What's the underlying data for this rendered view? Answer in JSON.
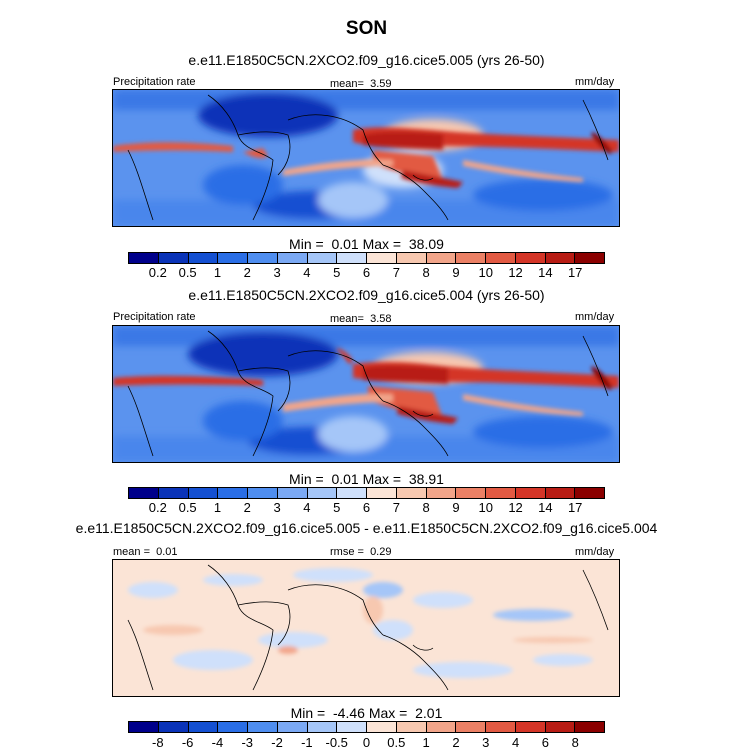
{
  "main_title": "SON",
  "colors": {
    "precip_scale": [
      "#00008b",
      "#0a33b8",
      "#1450d2",
      "#2a6ee6",
      "#4f8ef0",
      "#7ba9f4",
      "#a5c6f8",
      "#cfe0fb",
      "#fbe4d6",
      "#f7c8b0",
      "#f2a58a",
      "#eb8065",
      "#e25a43",
      "#d43527",
      "#b81c14",
      "#8b0000"
    ],
    "diff_scale": [
      "#00008b",
      "#0a33b8",
      "#1450d2",
      "#2a6ee6",
      "#4f8ef0",
      "#7ba9f4",
      "#a5c6f8",
      "#cfe0fb",
      "#fbe4d6",
      "#f7c8b0",
      "#f2a58a",
      "#eb8065",
      "#e25a43",
      "#d43527",
      "#b81c14",
      "#8b0000"
    ],
    "land_line": "#000000"
  },
  "chart_data": [
    {
      "type": "heatmap",
      "title": "e.e11.E1850C5CN.2XCO2.f09_g16.cice5.005 (yrs 26-50)",
      "left_label": "Precipitation rate",
      "center_label": "mean=",
      "center_value": "3.59",
      "units": "mm/day",
      "min_label": "Min =",
      "min_value": "0.01",
      "max_label": "Max =",
      "max_value": "38.09",
      "colorbar_ticks": [
        "0.2",
        "0.5",
        "1",
        "2",
        "3",
        "4",
        "5",
        "6",
        "7",
        "8",
        "9",
        "10",
        "12",
        "14",
        "17"
      ]
    },
    {
      "type": "heatmap",
      "title": "e.e11.E1850C5CN.2XCO2.f09_g16.cice5.004 (yrs 26-50)",
      "left_label": "Precipitation rate",
      "center_label": "mean=",
      "center_value": "3.58",
      "units": "mm/day",
      "min_label": "Min =",
      "min_value": "0.01",
      "max_label": "Max =",
      "max_value": "38.91",
      "colorbar_ticks": [
        "0.2",
        "0.5",
        "1",
        "2",
        "3",
        "4",
        "5",
        "6",
        "7",
        "8",
        "9",
        "10",
        "12",
        "14",
        "17"
      ]
    },
    {
      "type": "heatmap",
      "title": "e.e11.E1850C5CN.2XCO2.f09_g16.cice5.005 - e.e11.E1850C5CN.2XCO2.f09_g16.cice5.004",
      "left_label": "mean =",
      "left_value": "0.01",
      "center_label": "rmse =",
      "center_value": "0.29",
      "units": "mm/day",
      "min_label": "Min =",
      "min_value": "-4.46",
      "max_label": "Max =",
      "max_value": "2.01",
      "colorbar_ticks": [
        "-8",
        "-6",
        "-4",
        "-3",
        "-2",
        "-1",
        "-0.5",
        "0",
        "0.5",
        "1",
        "2",
        "3",
        "4",
        "6",
        "8"
      ]
    }
  ]
}
